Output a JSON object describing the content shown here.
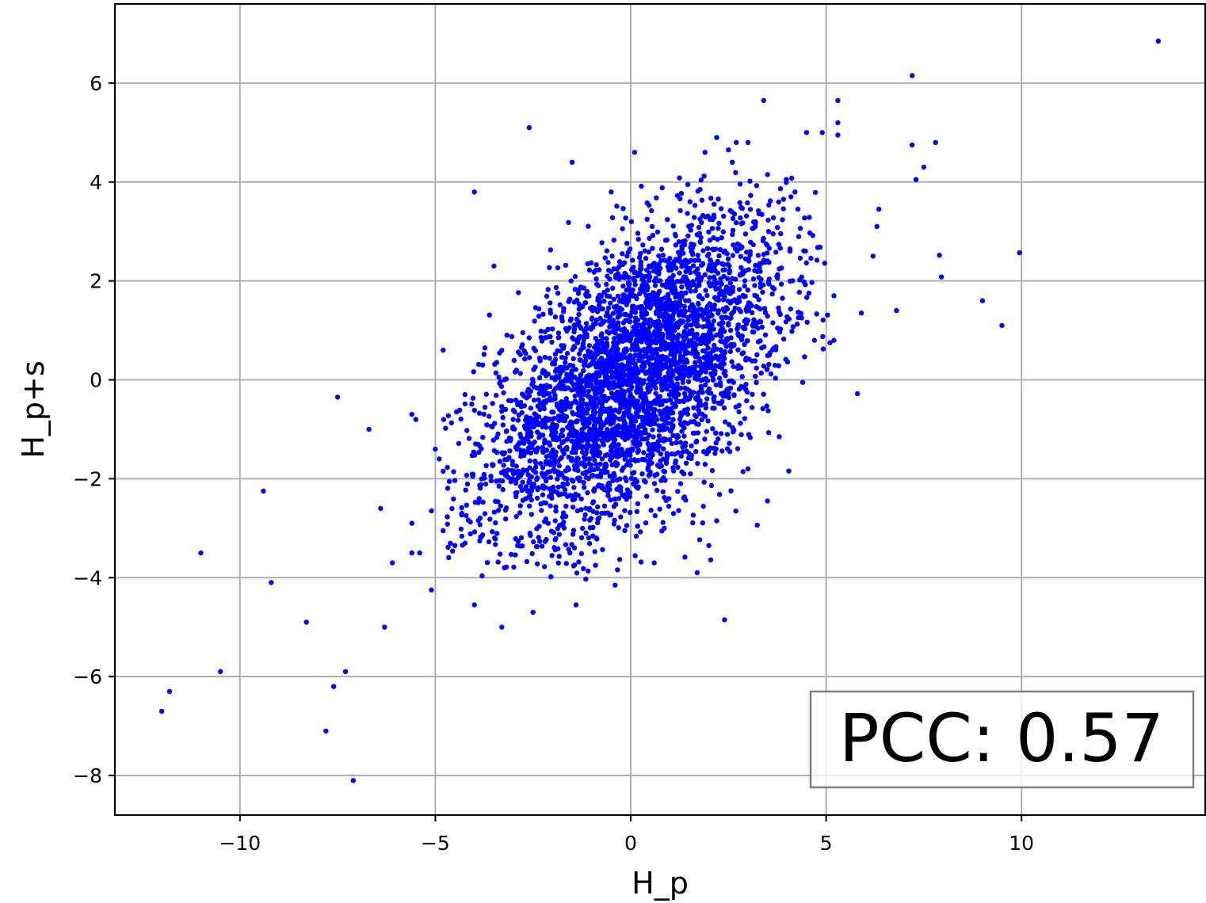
{
  "chart_data": {
    "type": "scatter",
    "title": "",
    "xlabel": "H_p",
    "ylabel": "H_p+s",
    "xlim": [
      -13.2,
      14.7
    ],
    "ylim": [
      -8.8,
      7.6
    ],
    "xticks": [
      -10,
      -5,
      0,
      5,
      10
    ],
    "yticks": [
      -8,
      -6,
      -4,
      -2,
      0,
      2,
      4,
      6
    ],
    "xtick_labels": [
      "−10",
      "−5",
      "0",
      "5",
      "10"
    ],
    "ytick_labels": [
      "−8",
      "−6",
      "−4",
      "−2",
      "0",
      "2",
      "4",
      "6"
    ],
    "grid": true,
    "marker_color": "#0000ff",
    "annotation": {
      "text": "PCC: 0.57",
      "placement": "bottom-right"
    },
    "series": [
      {
        "approximate_point_count": 3800,
        "cloud_model": {
          "mean_x": 0.1,
          "mean_y": 0.05,
          "sd_x": 1.9,
          "sd_y": 1.6,
          "correlation": 0.57
        },
        "outliers": [
          [
            13.5,
            6.85
          ],
          [
            7.2,
            6.15
          ],
          [
            7.2,
            4.75
          ],
          [
            7.8,
            4.8
          ],
          [
            7.5,
            4.3
          ],
          [
            7.3,
            4.05
          ],
          [
            9.95,
            2.57
          ],
          [
            7.9,
            2.52
          ],
          [
            7.95,
            2.08
          ],
          [
            9.0,
            1.6
          ],
          [
            9.5,
            1.1
          ],
          [
            6.8,
            1.4
          ],
          [
            5.9,
            1.35
          ],
          [
            5.8,
            -0.28
          ],
          [
            6.3,
            3.1
          ],
          [
            6.35,
            3.45
          ],
          [
            6.2,
            2.5
          ],
          [
            5.3,
            5.65
          ],
          [
            5.3,
            5.2
          ],
          [
            5.3,
            4.95
          ],
          [
            3.4,
            5.65
          ],
          [
            3.5,
            4.15
          ],
          [
            4.9,
            5.0
          ],
          [
            4.5,
            5.0
          ],
          [
            -1.5,
            4.4
          ],
          [
            0.1,
            4.6
          ],
          [
            -0.5,
            3.8
          ],
          [
            -4.0,
            3.8
          ],
          [
            -3.5,
            2.3
          ],
          [
            -4.8,
            0.6
          ],
          [
            -7.5,
            -0.35
          ],
          [
            -6.7,
            -1.0
          ],
          [
            -5.6,
            -0.7
          ],
          [
            -5.5,
            -0.8
          ],
          [
            -5.0,
            -1.4
          ],
          [
            -4.9,
            -1.6
          ],
          [
            -4.8,
            -1.85
          ],
          [
            -9.4,
            -2.25
          ],
          [
            -6.4,
            -2.6
          ],
          [
            -5.6,
            -2.9
          ],
          [
            -5.1,
            -2.65
          ],
          [
            -4.8,
            -3.05
          ],
          [
            -11.0,
            -3.5
          ],
          [
            -5.4,
            -3.5
          ],
          [
            -5.6,
            -3.5
          ],
          [
            -6.1,
            -3.7
          ],
          [
            -9.2,
            -4.1
          ],
          [
            -5.1,
            -4.25
          ],
          [
            -4.5,
            -3.35
          ],
          [
            -8.3,
            -4.9
          ],
          [
            -6.3,
            -5.0
          ],
          [
            -10.5,
            -5.9
          ],
          [
            -7.3,
            -5.9
          ],
          [
            -12.0,
            -6.7
          ],
          [
            -11.8,
            -6.3
          ],
          [
            -7.6,
            -6.2
          ],
          [
            -7.8,
            -7.1
          ],
          [
            -7.1,
            -8.1
          ],
          [
            -4.0,
            -4.55
          ],
          [
            -3.3,
            -5.0
          ],
          [
            -2.5,
            -4.7
          ],
          [
            -1.4,
            -4.55
          ],
          [
            -0.9,
            -3.75
          ],
          [
            -0.4,
            -4.15
          ],
          [
            0.6,
            -3.7
          ],
          [
            1.7,
            -3.9
          ],
          [
            2.4,
            -4.85
          ],
          [
            2.2,
            -2.85
          ],
          [
            3.5,
            -2.45
          ],
          [
            3.0,
            -1.8
          ],
          [
            3.8,
            -1.15
          ],
          [
            4.4,
            -0.05
          ],
          [
            4.7,
            0.8
          ],
          [
            5.2,
            0.8
          ],
          [
            5.1,
            0.75
          ],
          [
            5.2,
            1.7
          ],
          [
            2.0,
            -3.35
          ],
          [
            -2.6,
            5.1
          ],
          [
            4.1,
            3.7
          ],
          [
            4.2,
            3.8
          ],
          [
            2.6,
            4.4
          ],
          [
            2.2,
            4.9
          ],
          [
            2.7,
            4.8
          ],
          [
            3.0,
            4.8
          ],
          [
            1.9,
            4.6
          ],
          [
            2.5,
            4.65
          ]
        ]
      }
    ]
  }
}
